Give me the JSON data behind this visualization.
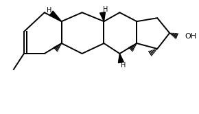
{
  "bg_color": "#ffffff",
  "line_color": "#000000",
  "lw": 1.4,
  "figsize": [
    2.9,
    1.66
  ],
  "dpi": 100,
  "xlim": [
    0,
    290
  ],
  "ylim": [
    0,
    166
  ]
}
